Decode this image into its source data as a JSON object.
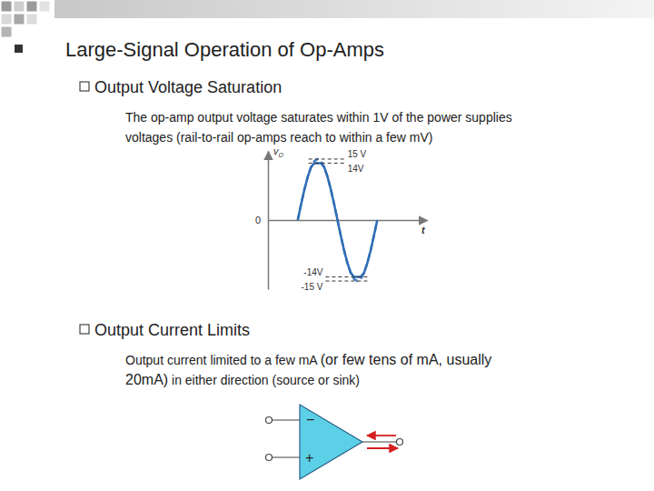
{
  "slide": {
    "heading": "Large-Signal Operation of Op-Amps",
    "sections": [
      {
        "title": "Output Voltage Saturation",
        "lines": [
          "The op-amp output voltage saturates within 1V of the power supplies",
          "voltages (rail-to-rail op-amps reach to within a few mV)"
        ]
      },
      {
        "title": "Output Current Limits",
        "lines": [
          [
            "Output current limited to a few mA ",
            "(or few tens of mA, usually"
          ],
          [
            "20mA)",
            " in either direction (source or sink)"
          ]
        ]
      }
    ],
    "diagram": {
      "inverting_label": "−",
      "noninverting_label": "+"
    }
  },
  "chart_data": {
    "type": "line",
    "x_label": "t",
    "y_label": "vO",
    "x": [
      0,
      1,
      2,
      3,
      4,
      5,
      6,
      7,
      8,
      9,
      10,
      11,
      12,
      13,
      14,
      15,
      16,
      17,
      18,
      19,
      20,
      21,
      22,
      23,
      24
    ],
    "series": [
      {
        "color": "#4a7fc0",
        "line_style": "dashed",
        "values": [
          0,
          3.88,
          7.5,
          10.61,
          12.99,
          14.49,
          15,
          14.49,
          12.99,
          10.61,
          7.5,
          3.88,
          0,
          -3.88,
          -7.5,
          -10.61,
          -12.99,
          -14.49,
          -15,
          -14.49,
          -12.99,
          -10.61,
          -7.5,
          -3.88,
          0
        ]
      },
      {
        "color": "#2e6db5",
        "line_style": "solid",
        "values": [
          0,
          3.88,
          7.5,
          10.61,
          12.99,
          14,
          14,
          14,
          12.99,
          10.61,
          7.5,
          3.88,
          0,
          -3.88,
          -7.5,
          -10.61,
          -12.99,
          -14,
          -14,
          -14,
          -12.99,
          -10.61,
          -7.5,
          -3.88,
          0
        ]
      }
    ],
    "xlim": [
      -9,
      39
    ],
    "ylim": [
      -17,
      17
    ],
    "yticks": [
      {
        "value": 15,
        "label": "15 V"
      },
      {
        "value": 14,
        "label": "14V"
      },
      0,
      {
        "value": -14,
        "label": "-14V"
      },
      {
        "value": -15,
        "label": "-15 V"
      }
    ],
    "tick_labels": "y"
  }
}
